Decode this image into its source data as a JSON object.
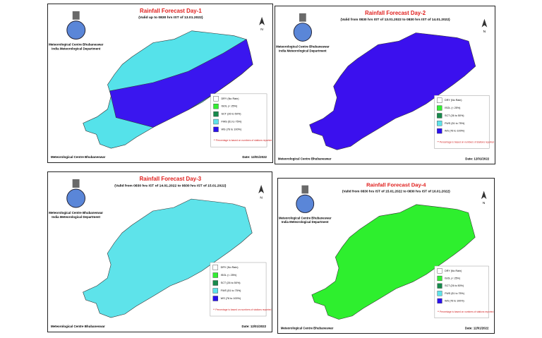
{
  "panels": [
    {
      "title": "Rainfall Forecast Day-1",
      "validity": "(Valid up to 0830 hrs IST of 13.01.2022)",
      "org_line1": "Meteorological Centre Bhubaneswar",
      "org_line2": "India Meteorological Department",
      "north": "N",
      "legend": [
        "DRY (No Rain)",
        "ISOL (< 25%)",
        "SCT (26 to 50%)",
        "FWS (51 to 75%)",
        "WS (76 to 100%)"
      ],
      "note": "** Percentage is based on numbers of stations reported rainfall",
      "footer": "Meteorological Centre Bhubaneswar",
      "date": "Date: 12/01/2022"
    },
    {
      "title": "Rainfall Forecast Day-2",
      "validity": "(Valid from 0830 hrs IST of 13.01.2022 to 0830 hrs IST of 14.01.2022)",
      "org_line1": "Meteorological Centre Bhubaneswar",
      "org_line2": "India Meteorological Department",
      "north": "N",
      "legend": [
        "DRY (No Rain)",
        "ISOL (< 25%)",
        "SCT (26 to 50%)",
        "FWS (51 to 75%)",
        "WS (76 to 100%)"
      ],
      "note": "** Percentage is based on numbers of stations reported rainfall",
      "footer": "Meteorological Centre Bhubaneswar",
      "date": "Date: 12/01/2022"
    },
    {
      "title": "Rainfall Forecast Day-3",
      "validity": "(Valid from 0830 hrs IST of 14.01.2022 to 0830 hrs IST of 15.01.2022)",
      "org_line1": "Meteorological Centre Bhubaneswar",
      "org_line2": "India Meteorological Department",
      "north": "N",
      "legend": [
        "DRY (No Rain)",
        "ISOL (< 25%)",
        "SCT (26 to 50%)",
        "FWS (51 to 75%)",
        "WS (76 to 100%)"
      ],
      "note": "** Percentage is based on numbers of stations reported rainfall",
      "footer": "Meteorological Centre Bhubaneswar",
      "date": "Date: 12/01/2022"
    },
    {
      "title": "Rainfall Forecast Day-4",
      "validity": "(Valid from 0830 hrs IST of 15.01.2022 to 0830 hrs IST of 16.01.2022)",
      "org_line1": "Meteorological Centre Bhubaneswar",
      "org_line2": "India Meteorological Department",
      "north": "N",
      "legend": [
        "DRY (No Rain)",
        "ISOL (< 25%)",
        "SCT (26 to 50%)",
        "FWS (51 to 75%)",
        "WS (76 to 100%)"
      ],
      "note": "** Percentage is based on numbers of stations reported rainfall",
      "footer": "Meteorological Centre Bhubaneswar",
      "date": "Date: 12/01/2022"
    }
  ]
}
